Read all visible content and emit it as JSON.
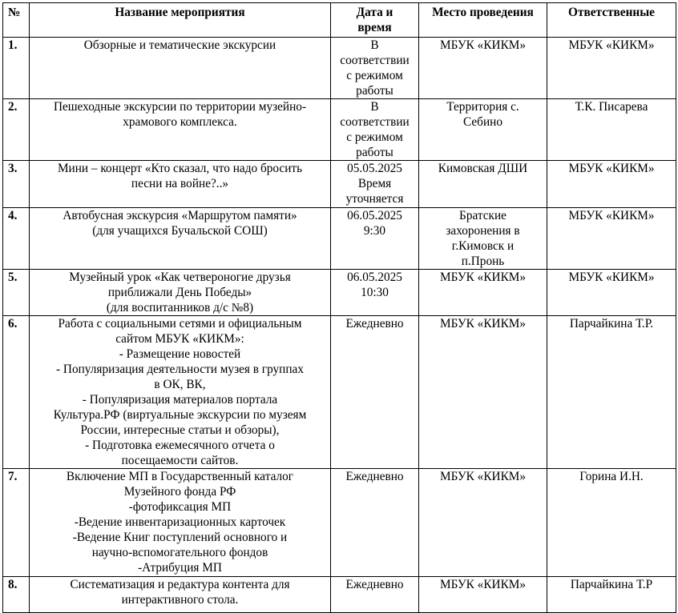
{
  "table": {
    "headers": [
      "№",
      "Название мероприятия",
      "Дата и\nвремя",
      "Место проведения",
      "Ответственные"
    ],
    "rows": [
      {
        "num": "1.",
        "name": "Обзорные и тематические экскурсии",
        "date": "В\nсоответствии\nс режимом\nработы",
        "place": "МБУК «КИКМ»",
        "resp": "МБУК «КИКМ»"
      },
      {
        "num": "2.",
        "name": "Пешеходные экскурсии по территории музейно-\nхрамового комплекса.",
        "date": "В\nсоответствии\nс режимом\nработы",
        "place": "Территория с.\nСебино",
        "resp": "Т.К. Писарева"
      },
      {
        "num": "3.",
        "name": "Мини – концерт «Кто сказал, что надо бросить\nпесни на войне?..»",
        "date": "05.05.2025\nВремя\nуточняется",
        "place": "Кимовская ДШИ",
        "resp": "МБУК «КИКМ»"
      },
      {
        "num": "4.",
        "name": "Автобусная экскурсия «Маршрутом памяти»\n(для учащихся Бучальской СОШ)",
        "date": "06.05.2025\n9:30",
        "place": "Братские\nзахоронения в\nг.Кимовск и\nп.Пронь",
        "resp": "МБУК «КИКМ»"
      },
      {
        "num": "5.",
        "name": "Музейный урок «Как четвероногие друзья\nприближали День Победы»\n(для воспитанников д/с №8)",
        "date": "06.05.2025\n10:30",
        "place": "МБУК «КИКМ»",
        "resp": "МБУК «КИКМ»"
      },
      {
        "num": "6.",
        "name": "Работа с социальными сетями и официальным\nсайтом МБУК «КИКМ»:\n- Размещение новостей\n- Популяризация деятельности музея в группах\nв ОК, ВК,\n- Популяризация материалов портала\nКультура.РФ (виртуальные экскурсии по музеям\nРоссии, интересные статьи и обзоры),\n- Подготовка ежемесячного отчета о\nпосещаемости сайтов.",
        "date": "Ежедневно",
        "place": "МБУК «КИКМ»",
        "resp": "Парчайкина Т.Р."
      },
      {
        "num": "7.",
        "name": "Включение МП в Государственный каталог\nМузейного фонда РФ\n-фотофиксация МП\n-Ведение инвентаризационных карточек\n-Ведение Книг поступлений основного и\nнаучно-вспомогательного фондов\n-Атрибуция МП",
        "date": "Ежедневно",
        "place": "МБУК «КИКМ»",
        "resp": "Горина И.Н."
      },
      {
        "num": "8.",
        "name": "Систематизация и редактура  контента для\nинтерактивного стола.",
        "date": "Ежедневно",
        "place": "МБУК «КИКМ»",
        "resp": "Парчайкина Т.Р"
      }
    ]
  }
}
